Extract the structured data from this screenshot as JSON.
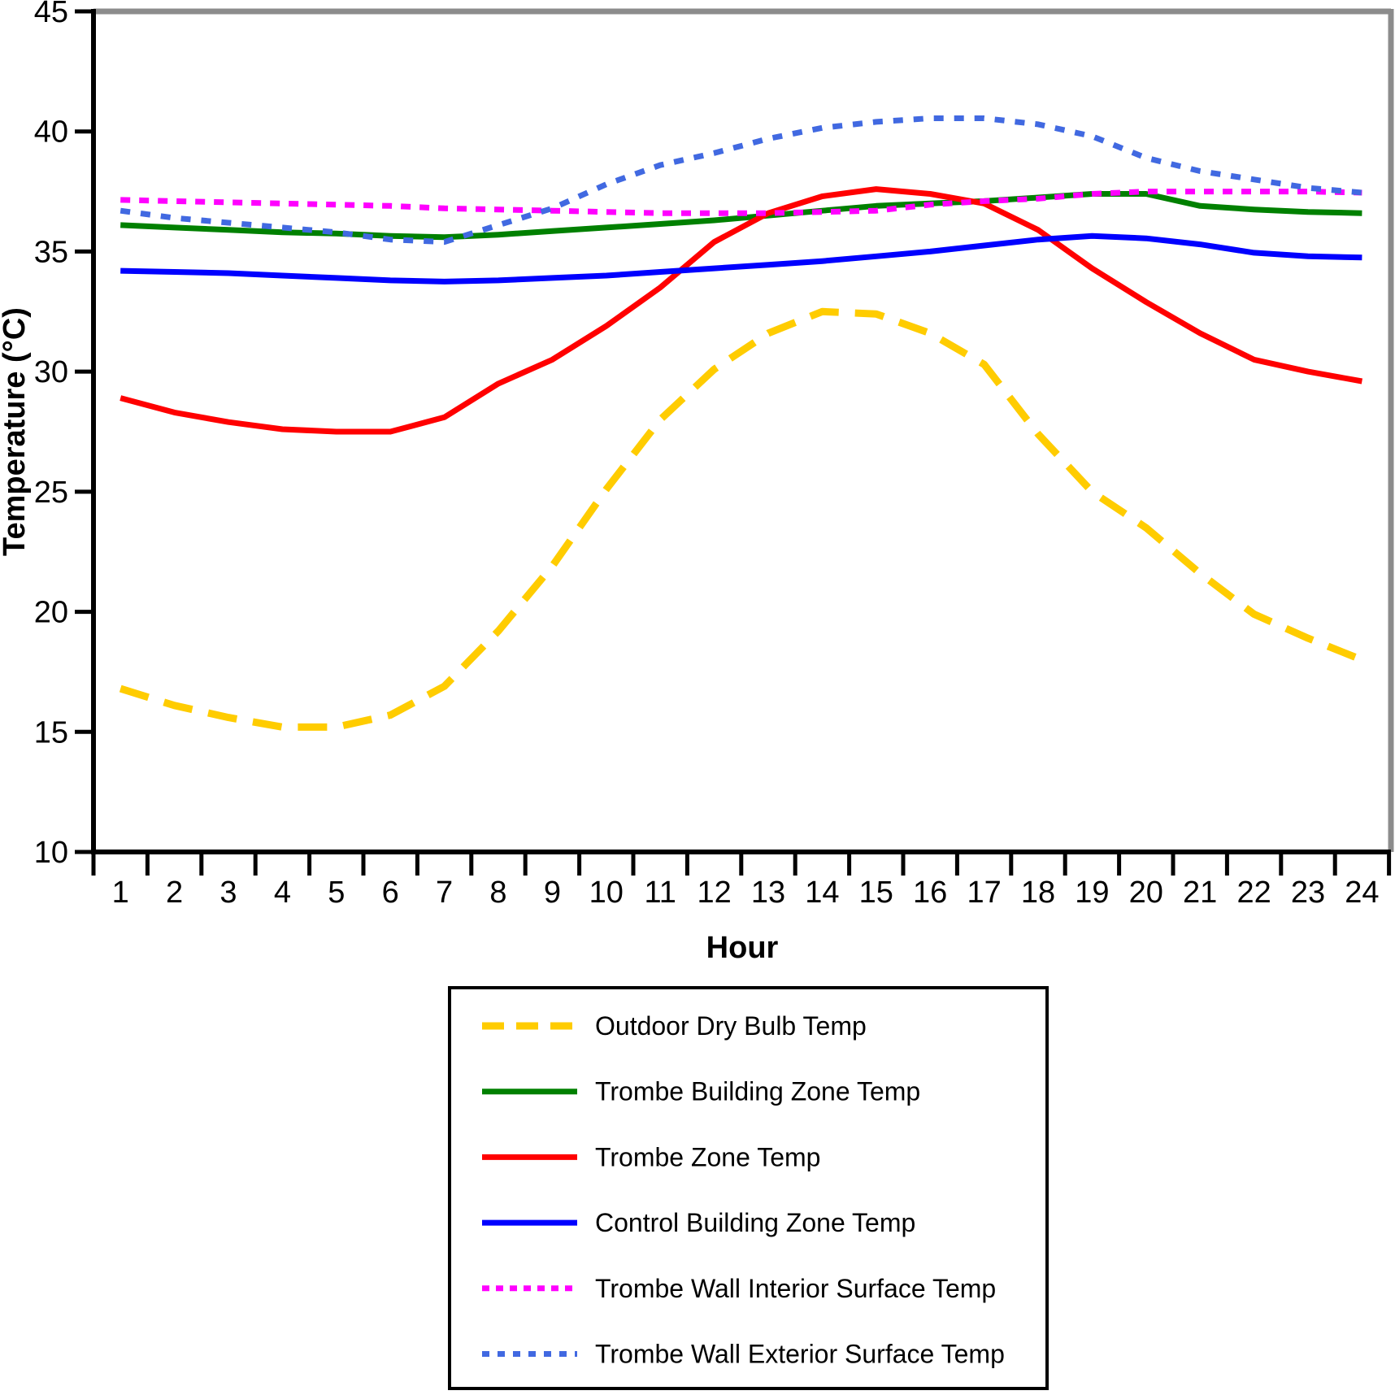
{
  "figure": {
    "background": "#FFFFFF",
    "axis_color": "#000000",
    "frame_color": "#8C8C8C"
  },
  "chart_data": {
    "type": "line",
    "title": "",
    "xlabel": "Hour",
    "ylabel": "Temperature (°C)",
    "x": [
      1,
      2,
      3,
      4,
      5,
      6,
      7,
      8,
      9,
      10,
      11,
      12,
      13,
      14,
      15,
      16,
      17,
      18,
      19,
      20,
      21,
      22,
      23,
      24
    ],
    "x_tick_labels": [
      "1",
      "2",
      "3",
      "4",
      "5",
      "6",
      "7",
      "8",
      "9",
      "10",
      "11",
      "12",
      "13",
      "14",
      "15",
      "16",
      "17",
      "18",
      "19",
      "20",
      "21",
      "22",
      "23",
      "24"
    ],
    "y_ticks": [
      10,
      15,
      20,
      25,
      30,
      35,
      40,
      45
    ],
    "ylim": [
      10,
      45
    ],
    "grid": false,
    "legend_position": "below-plot-boxed",
    "series": [
      {
        "name": "Outdoor Dry Bulb Temp",
        "color": "#FFCC00",
        "style": "dashed",
        "dash": [
          36,
          20
        ],
        "width": 9,
        "values": [
          16.8,
          16.1,
          15.6,
          15.2,
          15.2,
          15.7,
          16.9,
          19.2,
          21.9,
          25.1,
          28.0,
          30.1,
          31.6,
          32.5,
          32.4,
          31.6,
          30.3,
          27.4,
          25.0,
          23.5,
          21.6,
          19.9,
          18.9,
          18.0
        ]
      },
      {
        "name": "Trombe Building Zone Temp",
        "color": "#008000",
        "style": "solid",
        "dash": null,
        "width": 7,
        "values": [
          36.1,
          36.0,
          35.9,
          35.8,
          35.75,
          35.65,
          35.6,
          35.7,
          35.85,
          36.0,
          36.15,
          36.3,
          36.5,
          36.7,
          36.9,
          37.0,
          37.1,
          37.25,
          37.4,
          37.4,
          36.9,
          36.75,
          36.65,
          36.6
        ]
      },
      {
        "name": "Trombe Zone Temp",
        "color": "#FF0000",
        "style": "solid",
        "dash": null,
        "width": 7,
        "values": [
          28.9,
          28.3,
          27.9,
          27.6,
          27.5,
          27.5,
          28.1,
          29.5,
          30.5,
          31.9,
          33.5,
          35.4,
          36.6,
          37.3,
          37.6,
          37.4,
          37.0,
          35.9,
          34.3,
          32.9,
          31.6,
          30.5,
          30.0,
          29.6
        ]
      },
      {
        "name": "Control Building Zone Temp",
        "color": "#0000FF",
        "style": "solid",
        "dash": null,
        "width": 7,
        "values": [
          34.2,
          34.15,
          34.1,
          34.0,
          33.9,
          33.8,
          33.75,
          33.8,
          33.9,
          34.0,
          34.15,
          34.3,
          34.45,
          34.6,
          34.8,
          35.0,
          35.25,
          35.5,
          35.65,
          35.55,
          35.3,
          34.95,
          34.8,
          34.75
        ]
      },
      {
        "name": "Trombe Wall Interior Surface Temp",
        "color": "#FF00FF",
        "style": "dotted",
        "dash": [
          12,
          11
        ],
        "width": 7,
        "values": [
          37.15,
          37.1,
          37.05,
          37.0,
          36.95,
          36.9,
          36.8,
          36.75,
          36.7,
          36.65,
          36.6,
          36.6,
          36.6,
          36.65,
          36.7,
          36.95,
          37.1,
          37.2,
          37.4,
          37.5,
          37.5,
          37.5,
          37.5,
          37.45
        ]
      },
      {
        "name": "Trombe Wall Exterior Surface Temp",
        "color": "#4169E1",
        "style": "dotted",
        "dash": [
          12,
          13
        ],
        "width": 7,
        "values": [
          36.7,
          36.4,
          36.2,
          36.0,
          35.8,
          35.5,
          35.4,
          36.1,
          36.8,
          37.8,
          38.6,
          39.1,
          39.7,
          40.15,
          40.4,
          40.55,
          40.55,
          40.3,
          39.8,
          38.9,
          38.35,
          38.0,
          37.65,
          37.45
        ]
      }
    ]
  }
}
